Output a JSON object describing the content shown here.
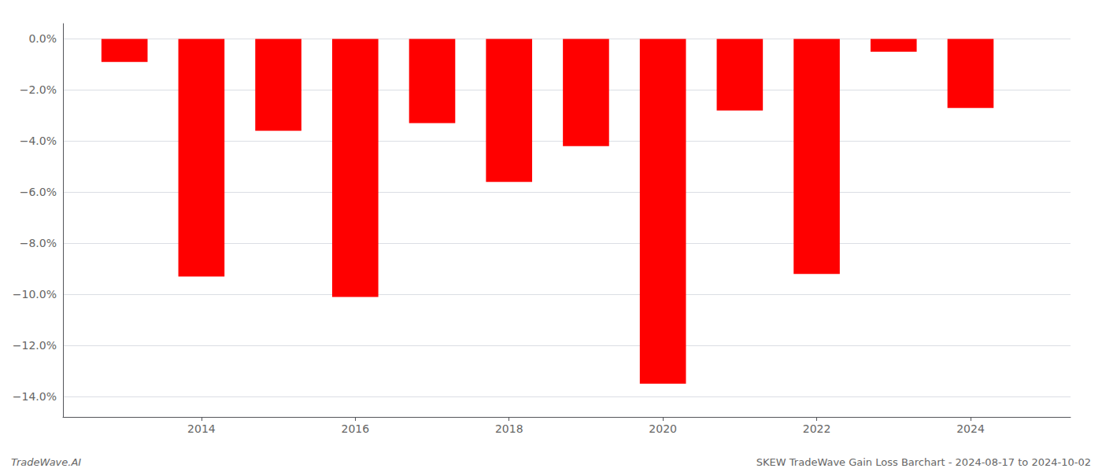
{
  "chart_data": {
    "type": "bar",
    "x": [
      2013,
      2014,
      2015,
      2016,
      2017,
      2018,
      2019,
      2020,
      2021,
      2022,
      2023,
      2024
    ],
    "values": [
      -0.009,
      -0.093,
      -0.036,
      -0.101,
      -0.033,
      -0.056,
      -0.042,
      -0.135,
      -0.028,
      -0.092,
      -0.005,
      -0.027
    ],
    "color": "#ff0000",
    "xlim": [
      2012.2,
      2025.3
    ],
    "xticks": [
      2014,
      2016,
      2018,
      2020,
      2022,
      2024
    ],
    "ylim": [
      -0.148,
      0.006
    ],
    "yticks": [
      {
        "value": 0.0,
        "label": "0.0%"
      },
      {
        "value": -0.02,
        "label": "−2.0%"
      },
      {
        "value": -0.04,
        "label": "−4.0%"
      },
      {
        "value": -0.06,
        "label": "−6.0%"
      },
      {
        "value": -0.08,
        "label": "−8.0%"
      },
      {
        "value": -0.1,
        "label": "−10.0%"
      },
      {
        "value": -0.12,
        "label": "−12.0%"
      },
      {
        "value": -0.14,
        "label": "−14.0%"
      }
    ],
    "grid": true,
    "annotations": [
      "TradeWave.AI",
      "SKEW TradeWave Gain Loss Barchart - 2024-08-17 to 2024-10-02"
    ]
  }
}
